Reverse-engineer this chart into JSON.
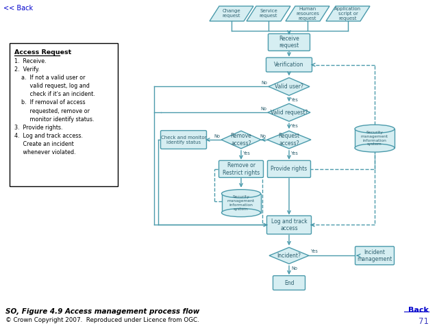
{
  "bg_color": "#ffffff",
  "flow_fill": "#d6eef2",
  "flow_border": "#4a9aab",
  "text_color": "#2c5f6e",
  "title": "SO, Figure 4.9 Access management process flow",
  "copyright": "© Crown Copyright 2007.  Reproduced under Licence from OGC.",
  "page_num": "71",
  "back_link": "<< Back",
  "back_link2": "Back"
}
